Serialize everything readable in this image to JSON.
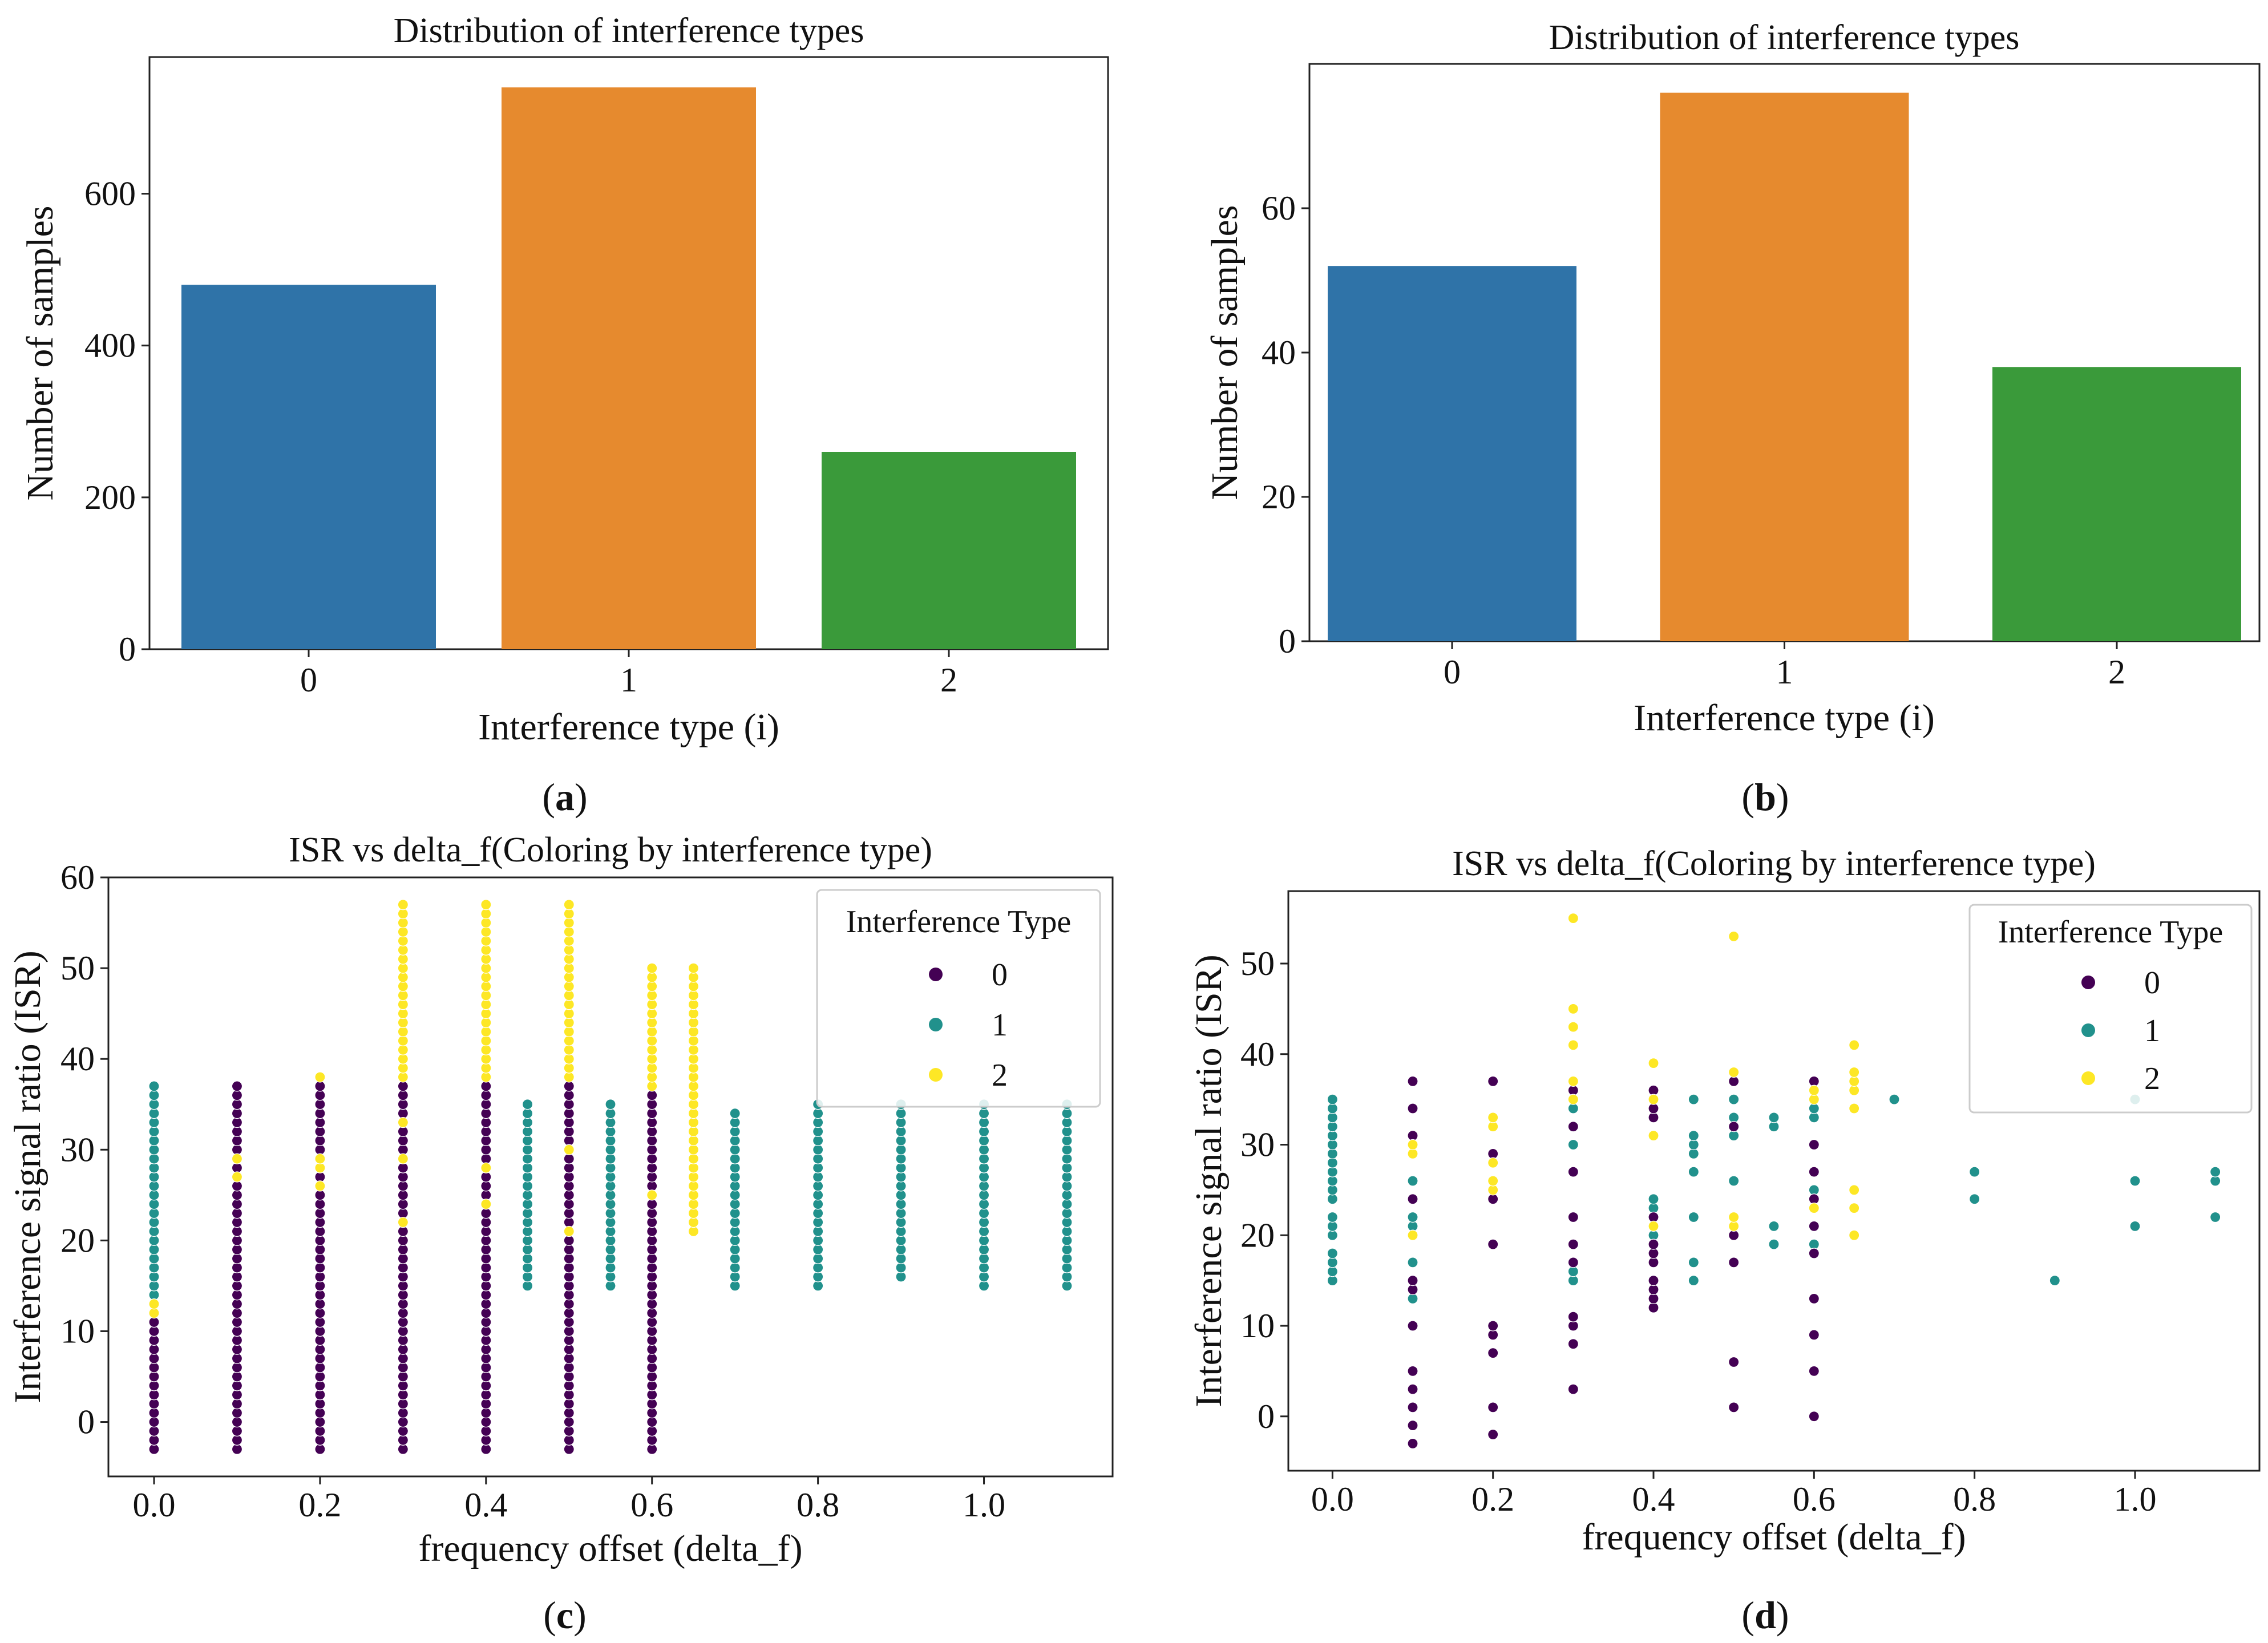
{
  "figure_labels": {
    "a": "a",
    "b": "b",
    "c": "c",
    "d": "d"
  },
  "chart_data": [
    {
      "panel": "a",
      "type": "bar",
      "title": "Distribution of interference types",
      "xlabel": "Interference type (i)",
      "ylabel": "Number of samples",
      "categories": [
        "0",
        "1",
        "2"
      ],
      "values": [
        480,
        740,
        260
      ],
      "colors": [
        "#2f73a8",
        "#e68a2e",
        "#3a9a3a"
      ],
      "ylim": [
        0,
        780
      ],
      "yticks": [
        0,
        200,
        400,
        600
      ]
    },
    {
      "panel": "b",
      "type": "bar",
      "title": "Distribution of interference types",
      "xlabel": "Interference type (i)",
      "ylabel": "Number of samples",
      "categories": [
        "0",
        "1",
        "2"
      ],
      "values": [
        52,
        76,
        38
      ],
      "colors": [
        "#2f73a8",
        "#e68a2e",
        "#3a9a3a"
      ],
      "ylim": [
        0,
        80
      ],
      "yticks": [
        0,
        20,
        40,
        60
      ]
    },
    {
      "panel": "c",
      "type": "scatter",
      "title": "ISR vs delta_f(Coloring by interference type)",
      "xlabel": "frequency offset (delta_f)",
      "ylabel": "Interference signal ratio (ISR)",
      "xlim": [
        -0.055,
        1.155
      ],
      "ylim": [
        -6,
        60
      ],
      "xticks": [
        "0.0",
        "0.2",
        "0.4",
        "0.6",
        "0.8",
        "1.0"
      ],
      "yticks": [
        "0",
        "10",
        "20",
        "30",
        "40",
        "50",
        "60"
      ],
      "legend": {
        "title": "Interference Type",
        "entries": [
          "0",
          "1",
          "2"
        ],
        "position": "upper right"
      },
      "colors": {
        "0": "#440154",
        "1": "#21918c",
        "2": "#fde725"
      },
      "series": [
        {
          "x": 0.0,
          "type": 0,
          "ranges": [
            [
              -3,
              13
            ]
          ]
        },
        {
          "x": 0.0,
          "type": 1,
          "ranges": [
            [
              14,
              37
            ]
          ]
        },
        {
          "x": 0.0,
          "type": 2,
          "values": [
            12,
            13
          ]
        },
        {
          "x": 0.1,
          "type": 0,
          "ranges": [
            [
              -3,
              37
            ]
          ]
        },
        {
          "x": 0.1,
          "type": 1,
          "values": [
            16,
            20,
            25,
            30,
            34
          ]
        },
        {
          "x": 0.1,
          "type": 2,
          "values": [
            27,
            29
          ]
        },
        {
          "x": 0.2,
          "type": 0,
          "ranges": [
            [
              -3,
              37
            ]
          ]
        },
        {
          "x": 0.2,
          "type": 1,
          "values": [
            15,
            20,
            25,
            30,
            34
          ]
        },
        {
          "x": 0.2,
          "type": 2,
          "values": [
            26,
            28,
            29,
            38
          ]
        },
        {
          "x": 0.3,
          "type": 0,
          "ranges": [
            [
              -3,
              37
            ]
          ]
        },
        {
          "x": 0.3,
          "type": 1,
          "values": [
            15,
            20,
            25,
            30,
            34
          ]
        },
        {
          "x": 0.3,
          "type": 2,
          "ranges": [
            [
              38,
              57
            ]
          ],
          "values": [
            22,
            29,
            33
          ]
        },
        {
          "x": 0.4,
          "type": 0,
          "ranges": [
            [
              -3,
              37
            ]
          ]
        },
        {
          "x": 0.4,
          "type": 1,
          "values": [
            15,
            20,
            25,
            30,
            34
          ]
        },
        {
          "x": 0.4,
          "type": 2,
          "ranges": [
            [
              38,
              57
            ]
          ],
          "values": [
            24,
            28
          ]
        },
        {
          "x": 0.45,
          "type": 1,
          "ranges": [
            [
              15,
              35
            ]
          ]
        },
        {
          "x": 0.5,
          "type": 0,
          "ranges": [
            [
              -3,
              37
            ]
          ]
        },
        {
          "x": 0.5,
          "type": 1,
          "values": [
            15,
            20,
            25,
            30,
            34
          ]
        },
        {
          "x": 0.5,
          "type": 2,
          "ranges": [
            [
              38,
              57
            ]
          ],
          "values": [
            21,
            30
          ]
        },
        {
          "x": 0.55,
          "type": 1,
          "ranges": [
            [
              15,
              35
            ]
          ]
        },
        {
          "x": 0.6,
          "type": 0,
          "ranges": [
            [
              -3,
              36
            ]
          ]
        },
        {
          "x": 0.6,
          "type": 1,
          "ranges": [
            [
              15,
              33
            ]
          ]
        },
        {
          "x": 0.6,
          "type": 2,
          "ranges": [
            [
              37,
              50
            ]
          ],
          "values": [
            25
          ]
        },
        {
          "x": 0.65,
          "type": 2,
          "ranges": [
            [
              21,
              50
            ]
          ]
        },
        {
          "x": 0.7,
          "type": 1,
          "ranges": [
            [
              15,
              34
            ]
          ]
        },
        {
          "x": 0.8,
          "type": 1,
          "ranges": [
            [
              15,
              35
            ]
          ]
        },
        {
          "x": 0.9,
          "type": 1,
          "ranges": [
            [
              16,
              35
            ]
          ]
        },
        {
          "x": 1.0,
          "type": 1,
          "ranges": [
            [
              15,
              35
            ]
          ]
        },
        {
          "x": 1.1,
          "type": 1,
          "ranges": [
            [
              15,
              35
            ]
          ]
        }
      ]
    },
    {
      "panel": "d",
      "type": "scatter",
      "title": "ISR vs delta_f(Coloring by interference type)",
      "xlabel": "frequency offset (delta_f)",
      "ylabel": "Interference signal ratio (ISR)",
      "xlim": [
        -0.055,
        1.155
      ],
      "ylim": [
        -6,
        58
      ],
      "xticks": [
        "0.0",
        "0.2",
        "0.4",
        "0.6",
        "0.8",
        "1.0"
      ],
      "yticks": [
        "0",
        "10",
        "20",
        "30",
        "40",
        "50"
      ],
      "legend": {
        "title": "Interference Type",
        "entries": [
          "0",
          "1",
          "2"
        ],
        "position": "upper right"
      },
      "colors": {
        "0": "#440154",
        "1": "#21918c",
        "2": "#fde725"
      },
      "series": [
        {
          "x": 0.0,
          "type": 1,
          "values": [
            15,
            16,
            17,
            18,
            20,
            21,
            22,
            24,
            25,
            26,
            27,
            28,
            29,
            30,
            31,
            32,
            33,
            34,
            35
          ]
        },
        {
          "x": 0.1,
          "type": 0,
          "values": [
            -3,
            -1,
            1,
            3,
            5,
            10,
            14,
            15,
            20,
            24,
            29,
            31,
            34,
            37
          ]
        },
        {
          "x": 0.1,
          "type": 1,
          "values": [
            13,
            17,
            21,
            22,
            26
          ]
        },
        {
          "x": 0.1,
          "type": 2,
          "values": [
            20,
            29,
            30
          ]
        },
        {
          "x": 0.2,
          "type": 0,
          "values": [
            -2,
            1,
            7,
            9,
            10,
            19,
            24,
            29,
            37
          ]
        },
        {
          "x": 0.2,
          "type": 2,
          "values": [
            25,
            26,
            28,
            32,
            33
          ]
        },
        {
          "x": 0.3,
          "type": 0,
          "values": [
            3,
            8,
            10,
            11,
            17,
            19,
            22,
            27,
            32,
            36
          ]
        },
        {
          "x": 0.3,
          "type": 1,
          "values": [
            15,
            16,
            30,
            34
          ]
        },
        {
          "x": 0.3,
          "type": 2,
          "values": [
            35,
            37,
            41,
            43,
            45,
            55
          ]
        },
        {
          "x": 0.4,
          "type": 0,
          "values": [
            12,
            13,
            14,
            15,
            17,
            18,
            19,
            21,
            22,
            33,
            34,
            36
          ]
        },
        {
          "x": 0.4,
          "type": 1,
          "values": [
            20,
            23,
            24
          ]
        },
        {
          "x": 0.4,
          "type": 2,
          "values": [
            21,
            31,
            35,
            39
          ]
        },
        {
          "x": 0.45,
          "type": 1,
          "values": [
            15,
            17,
            22,
            27,
            29,
            30,
            31,
            35
          ]
        },
        {
          "x": 0.5,
          "type": 0,
          "values": [
            1,
            6,
            17,
            20,
            32,
            37
          ]
        },
        {
          "x": 0.5,
          "type": 1,
          "values": [
            20,
            26,
            31,
            33,
            35
          ]
        },
        {
          "x": 0.5,
          "type": 2,
          "values": [
            21,
            22,
            38,
            53
          ]
        },
        {
          "x": 0.55,
          "type": 1,
          "values": [
            19,
            21,
            32,
            33
          ]
        },
        {
          "x": 0.6,
          "type": 0,
          "values": [
            0,
            5,
            9,
            13,
            18,
            21,
            24,
            27,
            30,
            37
          ]
        },
        {
          "x": 0.6,
          "type": 1,
          "values": [
            19,
            25,
            33,
            34
          ]
        },
        {
          "x": 0.6,
          "type": 2,
          "values": [
            23,
            35,
            36
          ]
        },
        {
          "x": 0.65,
          "type": 2,
          "values": [
            20,
            23,
            25,
            34,
            36,
            37,
            38,
            41
          ]
        },
        {
          "x": 0.7,
          "type": 1,
          "values": [
            35
          ]
        },
        {
          "x": 0.8,
          "type": 1,
          "values": [
            24,
            27
          ]
        },
        {
          "x": 0.9,
          "type": 1,
          "values": [
            15
          ]
        },
        {
          "x": 1.0,
          "type": 1,
          "values": [
            21,
            26,
            35
          ]
        },
        {
          "x": 1.1,
          "type": 1,
          "values": [
            22,
            26,
            27
          ]
        }
      ]
    }
  ]
}
